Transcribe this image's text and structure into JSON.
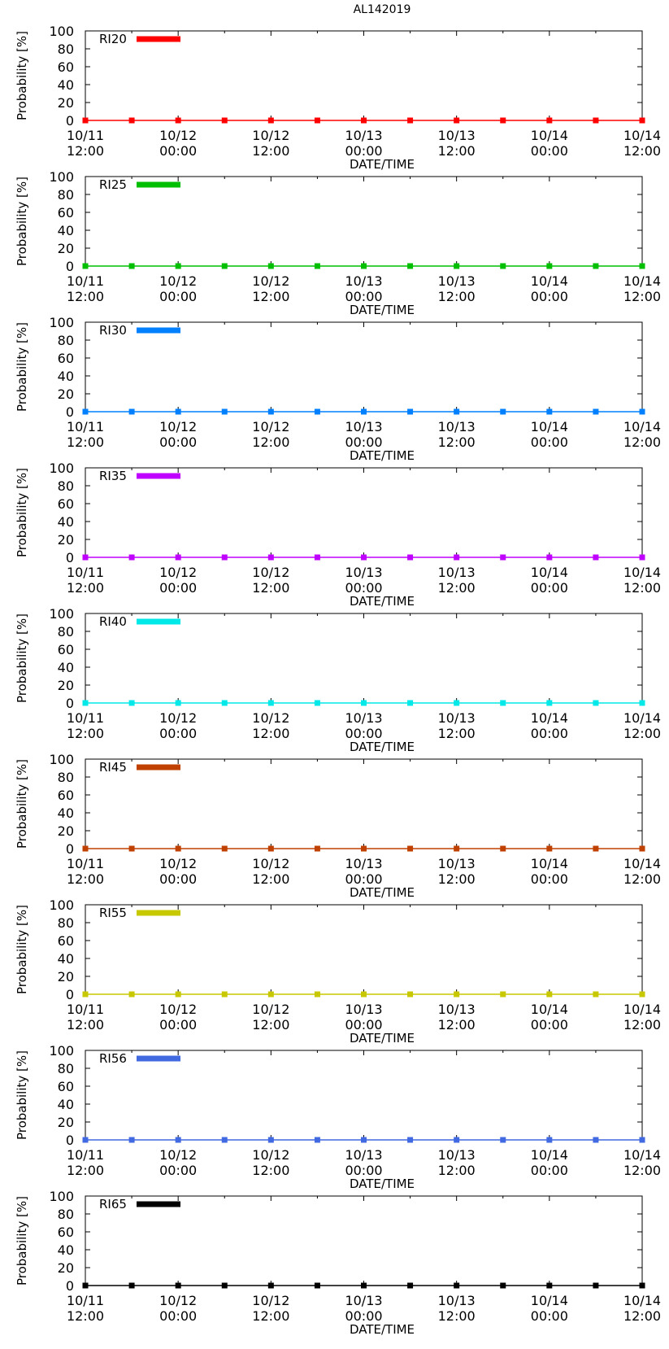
{
  "title": "AL142019",
  "colors": {
    "RI20": "#ff0000",
    "RI25": "#00bf00",
    "RI30": "#0080ff",
    "RI35": "#c000ff",
    "RI40": "#00e8e8",
    "RI45": "#c04000",
    "RI55": "#c8c800",
    "RI56": "#4169e1",
    "RI65": "#000000"
  },
  "chart_data": [
    {
      "type": "line",
      "series": [
        {
          "name": "RI20",
          "values": [
            0,
            0,
            0,
            0,
            0,
            0,
            0,
            0,
            0,
            0,
            0,
            0,
            0
          ]
        }
      ],
      "x": [
        0,
        6,
        12,
        18,
        24,
        30,
        36,
        42,
        48,
        54,
        60,
        66,
        72
      ],
      "x_tick_positions": [
        0,
        12,
        24,
        36,
        48,
        60,
        72
      ],
      "x_tick_labels": [
        [
          "10/11",
          "12:00"
        ],
        [
          "10/12",
          "00:00"
        ],
        [
          "10/12",
          "12:00"
        ],
        [
          "10/13",
          "00:00"
        ],
        [
          "10/13",
          "12:00"
        ],
        [
          "10/14",
          "00:00"
        ],
        [
          "10/14",
          "12:00"
        ]
      ],
      "xlabel": "DATE/TIME",
      "ylabel": "Probability [%]",
      "ylim": [
        0,
        100
      ],
      "yticks": [
        0,
        20,
        40,
        60,
        80,
        100
      ],
      "legend": "top-left"
    },
    {
      "type": "line",
      "series": [
        {
          "name": "RI25",
          "values": [
            0,
            0,
            0,
            0,
            0,
            0,
            0,
            0,
            0,
            0,
            0,
            0,
            0
          ]
        }
      ],
      "x": [
        0,
        6,
        12,
        18,
        24,
        30,
        36,
        42,
        48,
        54,
        60,
        66,
        72
      ],
      "x_tick_positions": [
        0,
        12,
        24,
        36,
        48,
        60,
        72
      ],
      "x_tick_labels": [
        [
          "10/11",
          "12:00"
        ],
        [
          "10/12",
          "00:00"
        ],
        [
          "10/12",
          "12:00"
        ],
        [
          "10/13",
          "00:00"
        ],
        [
          "10/13",
          "12:00"
        ],
        [
          "10/14",
          "00:00"
        ],
        [
          "10/14",
          "12:00"
        ]
      ],
      "xlabel": "DATE/TIME",
      "ylabel": "Probability [%]",
      "ylim": [
        0,
        100
      ],
      "yticks": [
        0,
        20,
        40,
        60,
        80,
        100
      ],
      "legend": "top-left"
    },
    {
      "type": "line",
      "series": [
        {
          "name": "RI30",
          "values": [
            0,
            0,
            0,
            0,
            0,
            0,
            0,
            0,
            0,
            0,
            0,
            0,
            0
          ]
        }
      ],
      "x": [
        0,
        6,
        12,
        18,
        24,
        30,
        36,
        42,
        48,
        54,
        60,
        66,
        72
      ],
      "x_tick_positions": [
        0,
        12,
        24,
        36,
        48,
        60,
        72
      ],
      "x_tick_labels": [
        [
          "10/11",
          "12:00"
        ],
        [
          "10/12",
          "00:00"
        ],
        [
          "10/12",
          "12:00"
        ],
        [
          "10/13",
          "00:00"
        ],
        [
          "10/13",
          "12:00"
        ],
        [
          "10/14",
          "00:00"
        ],
        [
          "10/14",
          "12:00"
        ]
      ],
      "xlabel": "DATE/TIME",
      "ylabel": "Probability [%]",
      "ylim": [
        0,
        100
      ],
      "yticks": [
        0,
        20,
        40,
        60,
        80,
        100
      ],
      "legend": "top-left"
    },
    {
      "type": "line",
      "series": [
        {
          "name": "RI35",
          "values": [
            0,
            0,
            0,
            0,
            0,
            0,
            0,
            0,
            0,
            0,
            0,
            0,
            0
          ]
        }
      ],
      "x": [
        0,
        6,
        12,
        18,
        24,
        30,
        36,
        42,
        48,
        54,
        60,
        66,
        72
      ],
      "x_tick_positions": [
        0,
        12,
        24,
        36,
        48,
        60,
        72
      ],
      "x_tick_labels": [
        [
          "10/11",
          "12:00"
        ],
        [
          "10/12",
          "00:00"
        ],
        [
          "10/12",
          "12:00"
        ],
        [
          "10/13",
          "00:00"
        ],
        [
          "10/13",
          "12:00"
        ],
        [
          "10/14",
          "00:00"
        ],
        [
          "10/14",
          "12:00"
        ]
      ],
      "xlabel": "DATE/TIME",
      "ylabel": "Probability [%]",
      "ylim": [
        0,
        100
      ],
      "yticks": [
        0,
        20,
        40,
        60,
        80,
        100
      ],
      "legend": "top-left"
    },
    {
      "type": "line",
      "series": [
        {
          "name": "RI40",
          "values": [
            0,
            0,
            0,
            0,
            0,
            0,
            0,
            0,
            0,
            0,
            0,
            0,
            0
          ]
        }
      ],
      "x": [
        0,
        6,
        12,
        18,
        24,
        30,
        36,
        42,
        48,
        54,
        60,
        66,
        72
      ],
      "x_tick_positions": [
        0,
        12,
        24,
        36,
        48,
        60,
        72
      ],
      "x_tick_labels": [
        [
          "10/11",
          "12:00"
        ],
        [
          "10/12",
          "00:00"
        ],
        [
          "10/12",
          "12:00"
        ],
        [
          "10/13",
          "00:00"
        ],
        [
          "10/13",
          "12:00"
        ],
        [
          "10/14",
          "00:00"
        ],
        [
          "10/14",
          "12:00"
        ]
      ],
      "xlabel": "DATE/TIME",
      "ylabel": "Probability [%]",
      "ylim": [
        0,
        100
      ],
      "yticks": [
        0,
        20,
        40,
        60,
        80,
        100
      ],
      "legend": "top-left"
    },
    {
      "type": "line",
      "series": [
        {
          "name": "RI45",
          "values": [
            0,
            0,
            0,
            0,
            0,
            0,
            0,
            0,
            0,
            0,
            0,
            0,
            0
          ]
        }
      ],
      "x": [
        0,
        6,
        12,
        18,
        24,
        30,
        36,
        42,
        48,
        54,
        60,
        66,
        72
      ],
      "x_tick_positions": [
        0,
        12,
        24,
        36,
        48,
        60,
        72
      ],
      "x_tick_labels": [
        [
          "10/11",
          "12:00"
        ],
        [
          "10/12",
          "00:00"
        ],
        [
          "10/12",
          "12:00"
        ],
        [
          "10/13",
          "00:00"
        ],
        [
          "10/13",
          "12:00"
        ],
        [
          "10/14",
          "00:00"
        ],
        [
          "10/14",
          "12:00"
        ]
      ],
      "xlabel": "DATE/TIME",
      "ylabel": "Probability [%]",
      "ylim": [
        0,
        100
      ],
      "yticks": [
        0,
        20,
        40,
        60,
        80,
        100
      ],
      "legend": "top-left"
    },
    {
      "type": "line",
      "series": [
        {
          "name": "RI55",
          "values": [
            0,
            0,
            0,
            0,
            0,
            0,
            0,
            0,
            0,
            0,
            0,
            0,
            0
          ]
        }
      ],
      "x": [
        0,
        6,
        12,
        18,
        24,
        30,
        36,
        42,
        48,
        54,
        60,
        66,
        72
      ],
      "x_tick_positions": [
        0,
        12,
        24,
        36,
        48,
        60,
        72
      ],
      "x_tick_labels": [
        [
          "10/11",
          "12:00"
        ],
        [
          "10/12",
          "00:00"
        ],
        [
          "10/12",
          "12:00"
        ],
        [
          "10/13",
          "00:00"
        ],
        [
          "10/13",
          "12:00"
        ],
        [
          "10/14",
          "00:00"
        ],
        [
          "10/14",
          "12:00"
        ]
      ],
      "xlabel": "DATE/TIME",
      "ylabel": "Probability [%]",
      "ylim": [
        0,
        100
      ],
      "yticks": [
        0,
        20,
        40,
        60,
        80,
        100
      ],
      "legend": "top-left"
    },
    {
      "type": "line",
      "series": [
        {
          "name": "RI56",
          "values": [
            0,
            0,
            0,
            0,
            0,
            0,
            0,
            0,
            0,
            0,
            0,
            0,
            0
          ]
        }
      ],
      "x": [
        0,
        6,
        12,
        18,
        24,
        30,
        36,
        42,
        48,
        54,
        60,
        66,
        72
      ],
      "x_tick_positions": [
        0,
        12,
        24,
        36,
        48,
        60,
        72
      ],
      "x_tick_labels": [
        [
          "10/11",
          "12:00"
        ],
        [
          "10/12",
          "00:00"
        ],
        [
          "10/12",
          "12:00"
        ],
        [
          "10/13",
          "00:00"
        ],
        [
          "10/13",
          "12:00"
        ],
        [
          "10/14",
          "00:00"
        ],
        [
          "10/14",
          "12:00"
        ]
      ],
      "xlabel": "DATE/TIME",
      "ylabel": "Probability [%]",
      "ylim": [
        0,
        100
      ],
      "yticks": [
        0,
        20,
        40,
        60,
        80,
        100
      ],
      "legend": "top-left"
    },
    {
      "type": "line",
      "series": [
        {
          "name": "RI65",
          "values": [
            0,
            0,
            0,
            0,
            0,
            0,
            0,
            0,
            0,
            0,
            0,
            0,
            0
          ]
        }
      ],
      "x": [
        0,
        6,
        12,
        18,
        24,
        30,
        36,
        42,
        48,
        54,
        60,
        66,
        72
      ],
      "x_tick_positions": [
        0,
        12,
        24,
        36,
        48,
        60,
        72
      ],
      "x_tick_labels": [
        [
          "10/11",
          "12:00"
        ],
        [
          "10/12",
          "00:00"
        ],
        [
          "10/12",
          "12:00"
        ],
        [
          "10/13",
          "00:00"
        ],
        [
          "10/13",
          "12:00"
        ],
        [
          "10/14",
          "00:00"
        ],
        [
          "10/14",
          "12:00"
        ]
      ],
      "xlabel": "DATE/TIME",
      "ylabel": "Probability [%]",
      "ylim": [
        0,
        100
      ],
      "yticks": [
        0,
        20,
        40,
        60,
        80,
        100
      ],
      "legend": "top-left"
    }
  ]
}
